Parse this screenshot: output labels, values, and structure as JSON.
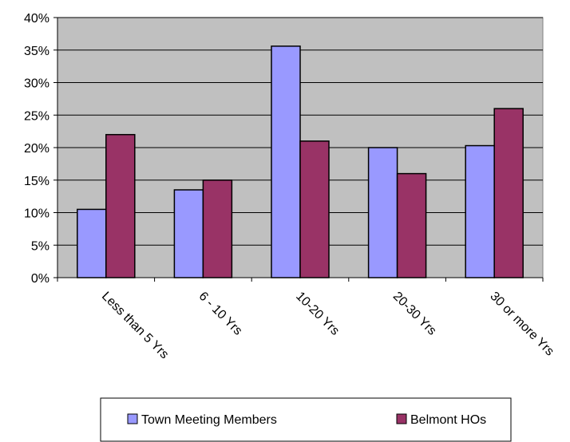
{
  "chart_data": {
    "type": "bar",
    "title": "",
    "xlabel": "",
    "ylabel": "",
    "categories": [
      "Less than 5 Yrs",
      "6 - 10 Yrs",
      "10-20 Yrs",
      "20-30 Yrs",
      "30 or more Yrs"
    ],
    "series": [
      {
        "name": "Town Meeting Members",
        "color": "#9999ff",
        "values": [
          10.5,
          13.5,
          35.6,
          20.0,
          20.3
        ]
      },
      {
        "name": "Belmont HOs",
        "color": "#993366",
        "values": [
          22.0,
          15.0,
          21.0,
          16.0,
          26.0
        ]
      }
    ],
    "ylim": [
      0,
      40
    ],
    "y_ticks": [
      "0%",
      "5%",
      "10%",
      "15%",
      "20%",
      "25%",
      "30%",
      "35%",
      "40%"
    ],
    "plot_background": "#c0c0c0",
    "grid": true,
    "legend_position": "bottom"
  }
}
